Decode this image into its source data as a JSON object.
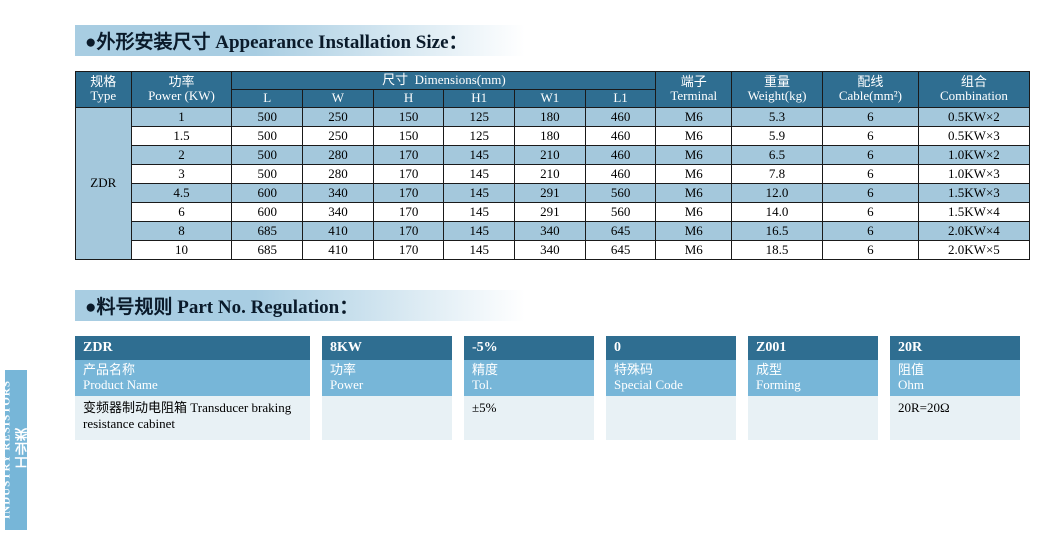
{
  "colors": {
    "header_bg": "#2f6e91",
    "row_odd_bg": "#a4c8dc",
    "row_even_bg": "#ffffff",
    "label_bg": "#77b6d8",
    "value_bg": "#e8f1f5",
    "text_dark": "#0a1a2a",
    "border": "#1a1a1a"
  },
  "sidebar": {
    "cn": "工业类",
    "en": "INDUSTRY RESISTORS"
  },
  "section1_title": "●外形安装尺寸  Appearance Installation Size：",
  "section2_title": "●料号规则  Part No. Regulation：",
  "install_table": {
    "header": {
      "type": {
        "cn": "规格",
        "en": "Type"
      },
      "power": {
        "cn": "功率",
        "en": "Power (KW)"
      },
      "dim": {
        "cn": "尺寸",
        "en": "Dimensions(mm)"
      },
      "dim_sub": [
        "L",
        "W",
        "H",
        "H1",
        "W1",
        "L1"
      ],
      "terminal": {
        "cn": "端子",
        "en": "Terminal"
      },
      "weight": {
        "cn": "重量",
        "en": "Weight(kg)"
      },
      "cable": {
        "cn": "配线",
        "en": "Cable(mm²)"
      },
      "comb": {
        "cn": "组合",
        "en": "Combination"
      }
    },
    "type_cell": "ZDR",
    "rows": [
      {
        "power": "1",
        "L": "500",
        "W": "250",
        "H": "150",
        "H1": "125",
        "W1": "180",
        "L1": "460",
        "term": "M6",
        "wt": "5.3",
        "cable": "6",
        "comb": "0.5KW×2"
      },
      {
        "power": "1.5",
        "L": "500",
        "W": "250",
        "H": "150",
        "H1": "125",
        "W1": "180",
        "L1": "460",
        "term": "M6",
        "wt": "5.9",
        "cable": "6",
        "comb": "0.5KW×3"
      },
      {
        "power": "2",
        "L": "500",
        "W": "280",
        "H": "170",
        "H1": "145",
        "W1": "210",
        "L1": "460",
        "term": "M6",
        "wt": "6.5",
        "cable": "6",
        "comb": "1.0KW×2"
      },
      {
        "power": "3",
        "L": "500",
        "W": "280",
        "H": "170",
        "H1": "145",
        "W1": "210",
        "L1": "460",
        "term": "M6",
        "wt": "7.8",
        "cable": "6",
        "comb": "1.0KW×3"
      },
      {
        "power": "4.5",
        "L": "600",
        "W": "340",
        "H": "170",
        "H1": "145",
        "W1": "291",
        "L1": "560",
        "term": "M6",
        "wt": "12.0",
        "cable": "6",
        "comb": "1.5KW×3"
      },
      {
        "power": "6",
        "L": "600",
        "W": "340",
        "H": "170",
        "H1": "145",
        "W1": "291",
        "L1": "560",
        "term": "M6",
        "wt": "14.0",
        "cable": "6",
        "comb": "1.5KW×4"
      },
      {
        "power": "8",
        "L": "685",
        "W": "410",
        "H": "170",
        "H1": "145",
        "W1": "340",
        "L1": "645",
        "term": "M6",
        "wt": "16.5",
        "cable": "6",
        "comb": "2.0KW×4"
      },
      {
        "power": "10",
        "L": "685",
        "W": "410",
        "H": "170",
        "H1": "145",
        "W1": "340",
        "L1": "645",
        "term": "M6",
        "wt": "18.5",
        "cable": "6",
        "comb": "2.0KW×5"
      }
    ]
  },
  "partno": [
    {
      "head": "ZDR",
      "label_cn": "产品名称",
      "label_en": "Product Name",
      "value": "变频器制动电阻箱  Transducer braking resistance cabinet"
    },
    {
      "head": "8KW",
      "label_cn": "功率",
      "label_en": "Power",
      "value": ""
    },
    {
      "head": "-5%",
      "label_cn": "精度",
      "label_en": "Tol.",
      "value": "±5%"
    },
    {
      "head": "0",
      "label_cn": "特殊码",
      "label_en": "Special Code",
      "value": ""
    },
    {
      "head": "Z001",
      "label_cn": "成型",
      "label_en": "Forming",
      "value": ""
    },
    {
      "head": "20R",
      "label_cn": "阻值",
      "label_en": "Ohm",
      "value": "20R=20Ω"
    }
  ]
}
